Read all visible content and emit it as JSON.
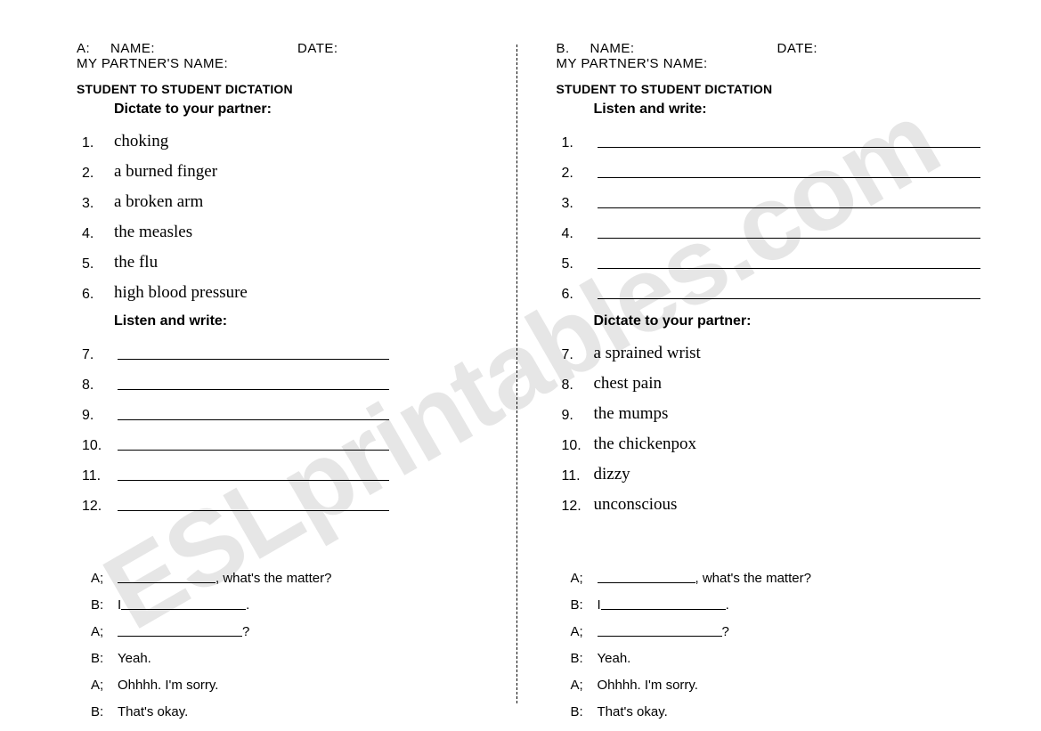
{
  "watermark": "ESLprintables.com",
  "left": {
    "letter": "A:",
    "nameLabel": "NAME:",
    "dateLabel": "DATE:",
    "partnerLabel": "MY PARTNER'S NAME:",
    "title": "STUDENT TO STUDENT DICTATION",
    "instruct1": "Dictate to your partner:",
    "words": [
      {
        "n": "1.",
        "w": "choking"
      },
      {
        "n": "2.",
        "w": "a burned finger"
      },
      {
        "n": "3.",
        "w": "a broken arm"
      },
      {
        "n": "4.",
        "w": "the measles"
      },
      {
        "n": "5.",
        "w": "the flu"
      },
      {
        "n": "6.",
        "w": "high blood pressure"
      }
    ],
    "instruct2": "Listen and write:",
    "blankNums": [
      "7.",
      "8.",
      "9.",
      "10.",
      "11.",
      "12."
    ]
  },
  "right": {
    "letter": "B.",
    "nameLabel": "NAME:",
    "dateLabel": "DATE:",
    "partnerLabel": "MY PARTNER'S NAME:",
    "title": "STUDENT TO STUDENT DICTATION",
    "instruct1": "Listen and write:",
    "blankNums": [
      "1.",
      "2.",
      "3.",
      "4.",
      "5.",
      "6."
    ],
    "instruct2": "Dictate to your partner:",
    "words": [
      {
        "n": "7.",
        "w": "a sprained wrist"
      },
      {
        "n": "8.",
        "w": "chest pain"
      },
      {
        "n": "9.",
        "w": "the mumps"
      },
      {
        "n": "10.",
        "w": "the chickenpox"
      },
      {
        "n": "11.",
        "w": "dizzy"
      },
      {
        "n": "12.",
        "w": "unconscious"
      }
    ]
  },
  "dialog": {
    "l1_tail": ", what's the matter?",
    "l2_pre": "I ",
    "l2_tail": ".",
    "l3_tail": "?",
    "l4": "Yeah.",
    "l5": "Ohhhh. I'm sorry.",
    "l6": "That's okay.",
    "spkA": "A;",
    "spkB": "B:"
  },
  "colors": {
    "text": "#000000",
    "watermark": "#e6e6e6",
    "background": "#ffffff"
  }
}
